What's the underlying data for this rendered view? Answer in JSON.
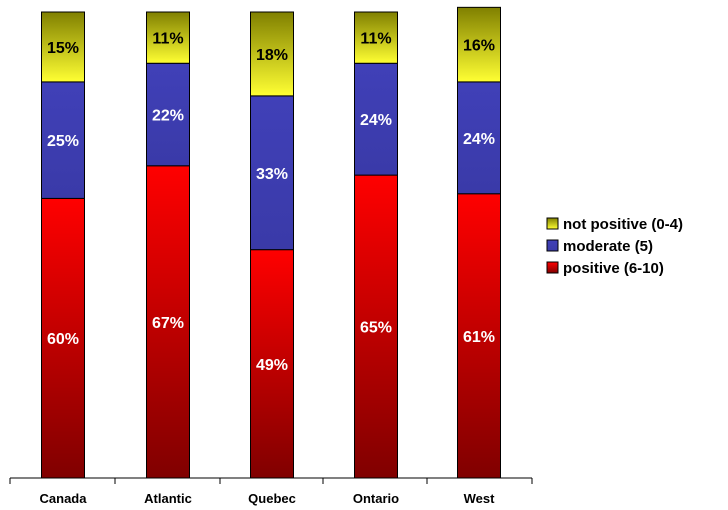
{
  "chart_data": {
    "type": "bar",
    "stacked": true,
    "percent_stacked": true,
    "categories": [
      "Canada",
      "Atlantic",
      "Quebec",
      "Ontario",
      "West"
    ],
    "series": [
      {
        "name": "positive (6-10)",
        "values": [
          60,
          67,
          49,
          65,
          61
        ],
        "labels": [
          "60%",
          "67%",
          "49%",
          "65%",
          "61%"
        ],
        "color_top": "#ff0000",
        "color_bottom": "#800000",
        "label_color": "#ffffff"
      },
      {
        "name": "moderate (5)",
        "values": [
          25,
          22,
          33,
          24,
          24
        ],
        "labels": [
          "25%",
          "22%",
          "33%",
          "24%",
          "24%"
        ],
        "color_top": "#4040b8",
        "color_bottom": "#3a3aa8",
        "label_color": "#ffffff"
      },
      {
        "name": "not positive (0-4)",
        "values": [
          15,
          11,
          18,
          11,
          16
        ],
        "labels": [
          "15%",
          "11%",
          "18%",
          "11%",
          "16%"
        ],
        "color_top": "#808000",
        "color_bottom": "#ffff33",
        "label_color": "#000000"
      }
    ],
    "legend_order": [
      "not positive (0-4)",
      "moderate (5)",
      "positive (6-10)"
    ],
    "legend_position": "right",
    "ylim": [
      0,
      100
    ],
    "grid": false
  }
}
